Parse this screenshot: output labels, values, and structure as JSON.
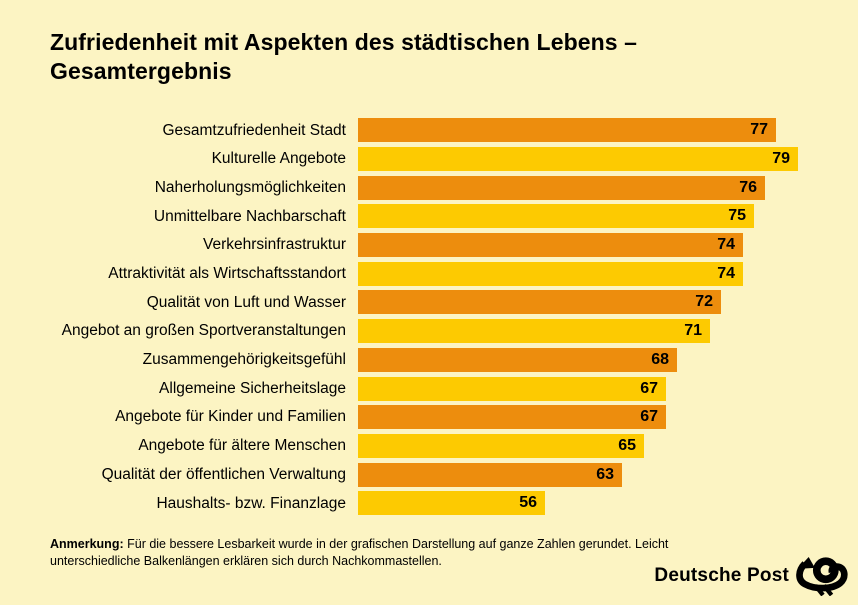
{
  "page": {
    "background": "#FCF4C3"
  },
  "header": {
    "title_line1": "Zufriedenheit mit Aspekten des städtischen Lebens –",
    "title_line2": "Gesamtergebnis"
  },
  "chart_data": {
    "type": "bar",
    "orientation": "horizontal",
    "title": "Zufriedenheit mit Aspekten des städtischen Lebens – Gesamtergebnis",
    "categories": [
      "Gesamtzufriedenheit Stadt",
      "Kulturelle Angebote",
      "Naherholungsmöglichkeiten",
      "Unmittelbare Nachbarschaft",
      "Verkehrsinfrastruktur",
      "Attraktivität als Wirtschaftsstandort",
      "Qualität von Luft und Wasser",
      "Angebot an großen Sportveranstaltungen",
      "Zusammengehörigkeitsgefühl",
      "Allgemeine Sicherheitslage",
      "Angebote für Kinder und Familien",
      "Angebote für ältere Menschen",
      "Qualität der öffentlichen Verwaltung",
      "Haushalts- bzw. Finanzlage"
    ],
    "values": [
      77,
      79,
      76,
      75,
      74,
      74,
      72,
      71,
      68,
      67,
      67,
      65,
      63,
      56
    ],
    "value_labels": "inside-end",
    "bar_colors_alternating": [
      "#ED8D0D",
      "#FDCA01"
    ],
    "xlim": [
      39,
      79
    ],
    "axis_hidden": true,
    "grid": false,
    "legend": false
  },
  "note": {
    "label": "Anmerkung:",
    "text": "Für die bessere Lesbarkeit wurde in der grafischen Darstellung auf ganze Zahlen gerundet. Leicht unterschiedliche Balkenlängen erklären sich durch Nachkommastellen."
  },
  "footer": {
    "brand": "Deutsche Post",
    "logo_icon": "posthorn-icon"
  }
}
